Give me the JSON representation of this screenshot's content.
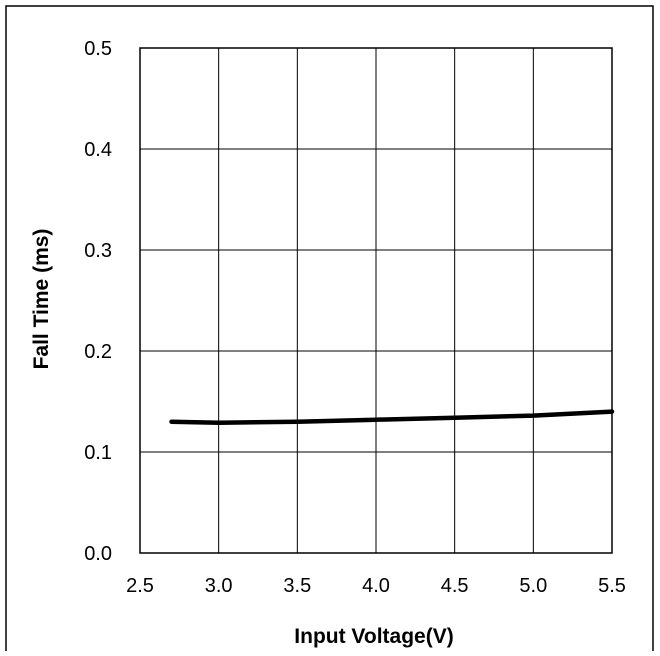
{
  "chart_data": {
    "type": "line",
    "title": "",
    "xlabel": "Input Voltage(V)",
    "ylabel": "Fall Time (ms)",
    "xlim": [
      2.5,
      5.5
    ],
    "ylim": [
      0.0,
      0.5
    ],
    "xticks": [
      "2.5",
      "3.0",
      "3.5",
      "4.0",
      "4.5",
      "5.0",
      "5.5"
    ],
    "yticks": [
      "0.0",
      "0.1",
      "0.2",
      "0.3",
      "0.4",
      "0.5"
    ],
    "grid": true,
    "series": [
      {
        "x": [
          2.7,
          3.0,
          3.5,
          4.0,
          4.5,
          5.0,
          5.5
        ],
        "y": [
          0.13,
          0.129,
          0.13,
          0.132,
          0.134,
          0.136,
          0.14
        ]
      }
    ]
  },
  "colors": {
    "line": "#000000",
    "grid": "#000000",
    "background": "#ffffff"
  }
}
